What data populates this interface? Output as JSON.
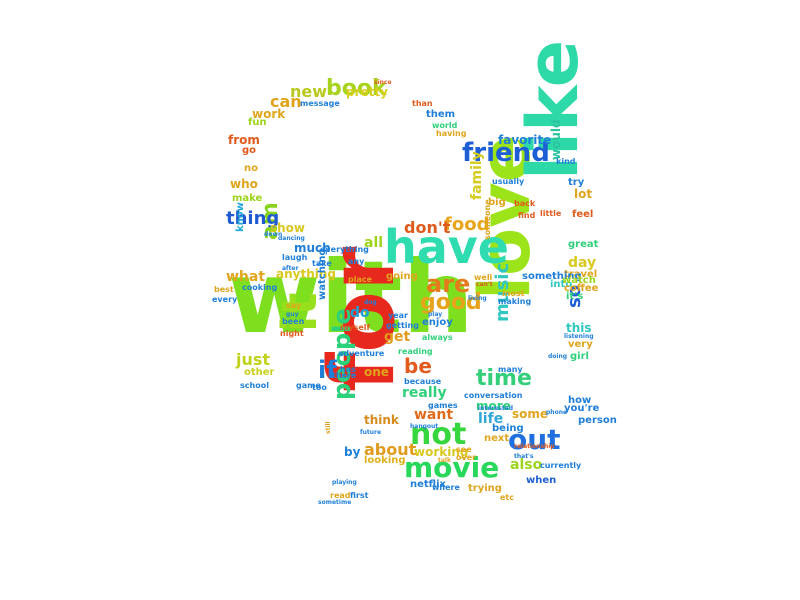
{
  "word_cloud": {
    "words": [
      {
        "text": "with",
        "color": "#7ddf1e"
      },
      {
        "text": "for",
        "color": "#e6291c"
      },
      {
        "text": "love",
        "color": "#9de31a"
      },
      {
        "text": "like",
        "color": "#2ed9a8"
      },
      {
        "text": "have",
        "color": "#2fdcb0"
      },
      {
        "text": "friend",
        "color": "#1f5fd6"
      },
      {
        "text": "movie",
        "color": "#27d85a"
      },
      {
        "text": "not",
        "color": "#35d63e"
      },
      {
        "text": "out",
        "color": "#1f6fe0"
      },
      {
        "text": "are",
        "color": "#e87a1e"
      },
      {
        "text": "it",
        "color": "#99e01c"
      },
      {
        "text": "book",
        "color": "#a8d31c"
      },
      {
        "text": "people",
        "color": "#2bd07a"
      },
      {
        "text": "time",
        "color": "#34cf7a"
      },
      {
        "text": "be",
        "color": "#e25a1c"
      },
      {
        "text": "good",
        "color": "#e8a31c"
      },
      {
        "text": "am",
        "color": "#86d31a"
      },
      {
        "text": "thing",
        "color": "#1f5ad0"
      },
      {
        "text": "if",
        "color": "#1f7fd8"
      },
      {
        "text": "food",
        "color": "#e8a51c"
      },
      {
        "text": "don't",
        "color": "#e05a1c"
      },
      {
        "text": "music",
        "color": "#2fc7c0"
      },
      {
        "text": "family",
        "color": "#d4cb1f"
      },
      {
        "text": "new",
        "color": "#b8c81c"
      },
      {
        "text": "can",
        "color": "#e0a31c"
      },
      {
        "text": "pretty",
        "color": "#d9cf1f"
      },
      {
        "text": "favorite",
        "color": "#1f7fd8"
      },
      {
        "text": "would",
        "color": "#2bc4a0"
      },
      {
        "text": "also",
        "color": "#9cd41a"
      },
      {
        "text": "life",
        "color": "#2fa8d8"
      },
      {
        "text": "about",
        "color": "#e09a1c"
      },
      {
        "text": "working",
        "color": "#d9c81f"
      },
      {
        "text": "just",
        "color": "#c0d21c"
      },
      {
        "text": "other",
        "color": "#c8d01c"
      },
      {
        "text": "really",
        "color": "#2fd07a"
      },
      {
        "text": "want",
        "color": "#e06a1c"
      },
      {
        "text": "think",
        "color": "#d88a1c"
      },
      {
        "text": "looking",
        "color": "#e0b01c"
      },
      {
        "text": "some",
        "color": "#e0a51c"
      },
      {
        "text": "so",
        "color": "#1f5fd6"
      },
      {
        "text": "get",
        "color": "#e09a1c"
      },
      {
        "text": "do",
        "color": "#1f9fd8"
      },
      {
        "text": "show",
        "color": "#d9c81f"
      },
      {
        "text": "know",
        "color": "#1fa8d8"
      },
      {
        "text": "what",
        "color": "#e0a51c"
      },
      {
        "text": "anything",
        "color": "#d9c81f"
      },
      {
        "text": "much",
        "color": "#1f7fd8"
      },
      {
        "text": "all",
        "color": "#9cd41a"
      },
      {
        "text": "enjoy",
        "color": "#1f7fd8"
      },
      {
        "text": "one",
        "color": "#e0a51c"
      },
      {
        "text": "by",
        "color": "#1f7fd8"
      },
      {
        "text": "watching",
        "color": "#1f7fd8"
      },
      {
        "text": "work",
        "color": "#e0a51c"
      },
      {
        "text": "fun",
        "color": "#9cd41a"
      },
      {
        "text": "from",
        "color": "#e05a1c"
      },
      {
        "text": "go",
        "color": "#e05a1c"
      },
      {
        "text": "who",
        "color": "#e0a51c"
      },
      {
        "text": "make",
        "color": "#9cd41a"
      },
      {
        "text": "no",
        "color": "#e0a51c"
      },
      {
        "text": "it's",
        "color": "#2fd07a"
      },
      {
        "text": "day",
        "color": "#d9c81f"
      },
      {
        "text": "feel",
        "color": "#e05a1c"
      },
      {
        "text": "lot",
        "color": "#e0a51c"
      },
      {
        "text": "try",
        "color": "#1f7fd8"
      },
      {
        "text": "great",
        "color": "#2fd07a"
      },
      {
        "text": "into",
        "color": "#2fc7c0"
      },
      {
        "text": "travel",
        "color": "#e0a51c"
      },
      {
        "text": "something",
        "color": "#1f7fd8"
      },
      {
        "text": "watch",
        "color": "#9cd41a"
      },
      {
        "text": "coffee",
        "color": "#e0a51c"
      },
      {
        "text": "this",
        "color": "#2fc7c0"
      },
      {
        "text": "very",
        "color": "#e0a51c"
      },
      {
        "text": "how",
        "color": "#1f7fd8"
      },
      {
        "text": "person",
        "color": "#1f7fd8"
      },
      {
        "text": "you're",
        "color": "#1f7fd8"
      },
      {
        "text": "when",
        "color": "#1f5fd6"
      },
      {
        "text": "next",
        "color": "#e0a51c"
      },
      {
        "text": "more",
        "color": "#2fd07a"
      },
      {
        "text": "being",
        "color": "#1f7fd8"
      },
      {
        "text": "currently",
        "color": "#1f7fd8"
      },
      {
        "text": "trying",
        "color": "#e0a51c"
      },
      {
        "text": "netflix",
        "color": "#1f7fd8"
      },
      {
        "text": "conversation",
        "color": "#1f7fd8"
      },
      {
        "text": "games",
        "color": "#1f7fd8"
      },
      {
        "text": "because",
        "color": "#1f7fd8"
      },
      {
        "text": "reading",
        "color": "#2fd07a"
      },
      {
        "text": "always",
        "color": "#2fd07a"
      },
      {
        "text": "adventure",
        "color": "#1f7fd8"
      },
      {
        "text": "there",
        "color": "#1f7fd8"
      },
      {
        "text": "school",
        "color": "#1f7fd8"
      },
      {
        "text": "going",
        "color": "#e0a51c"
      },
      {
        "text": "place",
        "color": "#e0a51c"
      },
      {
        "text": "year",
        "color": "#1f7fd8"
      },
      {
        "text": "getting",
        "color": "#1f7fd8"
      },
      {
        "text": "myself",
        "color": "#e05a1c"
      },
      {
        "text": "everything",
        "color": "#1f7fd8"
      },
      {
        "text": "take",
        "color": "#1f7fd8"
      },
      {
        "text": "cooking",
        "color": "#1f7fd8"
      },
      {
        "text": "every",
        "color": "#1f7fd8"
      },
      {
        "text": "best",
        "color": "#e0a51c"
      },
      {
        "text": "been",
        "color": "#1f7fd8"
      },
      {
        "text": "night",
        "color": "#e05a1c"
      },
      {
        "text": "game",
        "color": "#1f7fd8"
      },
      {
        "text": "them",
        "color": "#1f7fd8"
      },
      {
        "text": "world",
        "color": "#2fd07a"
      },
      {
        "text": "having",
        "color": "#e0a51c"
      },
      {
        "text": "than",
        "color": "#e05a1c"
      },
      {
        "text": "message",
        "color": "#1f7fd8"
      },
      {
        "text": "since",
        "color": "#e05a1c"
      },
      {
        "text": "little",
        "color": "#e05a1c"
      },
      {
        "text": "find",
        "color": "#e05a1c"
      },
      {
        "text": "most",
        "color": "#e0a51c"
      },
      {
        "text": "making",
        "color": "#1f7fd8"
      },
      {
        "text": "girl",
        "color": "#2fd07a"
      },
      {
        "text": "many",
        "color": "#1f7fd8"
      },
      {
        "text": "interested",
        "color": "#1f7fd8"
      },
      {
        "text": "phone",
        "color": "#1f7fd8"
      },
      {
        "text": "relationship",
        "color": "#e05a1c"
      },
      {
        "text": "that's",
        "color": "#1f7fd8"
      },
      {
        "text": "etc",
        "color": "#e0a51c"
      },
      {
        "text": "where",
        "color": "#1f7fd8"
      },
      {
        "text": "first",
        "color": "#1f7fd8"
      },
      {
        "text": "read",
        "color": "#e0a51c"
      },
      {
        "text": "playing",
        "color": "#1f7fd8"
      },
      {
        "text": "sometime",
        "color": "#1f7fd8"
      },
      {
        "text": "too",
        "color": "#1f7fd8"
      },
      {
        "text": "has",
        "color": "#1f7fd8"
      },
      {
        "text": "dog",
        "color": "#1f7fd8"
      },
      {
        "text": "dancing",
        "color": "#1f7fd8"
      },
      {
        "text": "laugh",
        "color": "#1f7fd8"
      },
      {
        "text": "after",
        "color": "#1f7fd8"
      },
      {
        "text": "down",
        "color": "#1f7fd8"
      },
      {
        "text": "say",
        "color": "#e0a51c"
      },
      {
        "text": "guy",
        "color": "#1f7fd8"
      },
      {
        "text": "any",
        "color": "#1f7fd8"
      },
      {
        "text": "play",
        "color": "#1f7fd8"
      },
      {
        "text": "kind",
        "color": "#1f7fd8"
      },
      {
        "text": "usually",
        "color": "#1f7fd8"
      },
      {
        "text": "big",
        "color": "#e0a51c"
      },
      {
        "text": "back",
        "color": "#e05a1c"
      },
      {
        "text": "someone",
        "color": "#e0a51c"
      },
      {
        "text": "well",
        "color": "#e0a51c"
      },
      {
        "text": "can't",
        "color": "#e05a1c"
      },
      {
        "text": "living",
        "color": "#1f7fd8"
      },
      {
        "text": "listening",
        "color": "#1f7fd8"
      },
      {
        "text": "doing",
        "color": "#1f7fd8"
      },
      {
        "text": "see",
        "color": "#e0a51c"
      },
      {
        "text": "over",
        "color": "#e0a51c"
      },
      {
        "text": "future",
        "color": "#1f7fd8"
      },
      {
        "text": "still",
        "color": "#e0a51c"
      },
      {
        "text": "hangout",
        "color": "#1f7fd8"
      },
      {
        "text": "talk",
        "color": "#e0a51c"
      }
    ]
  }
}
